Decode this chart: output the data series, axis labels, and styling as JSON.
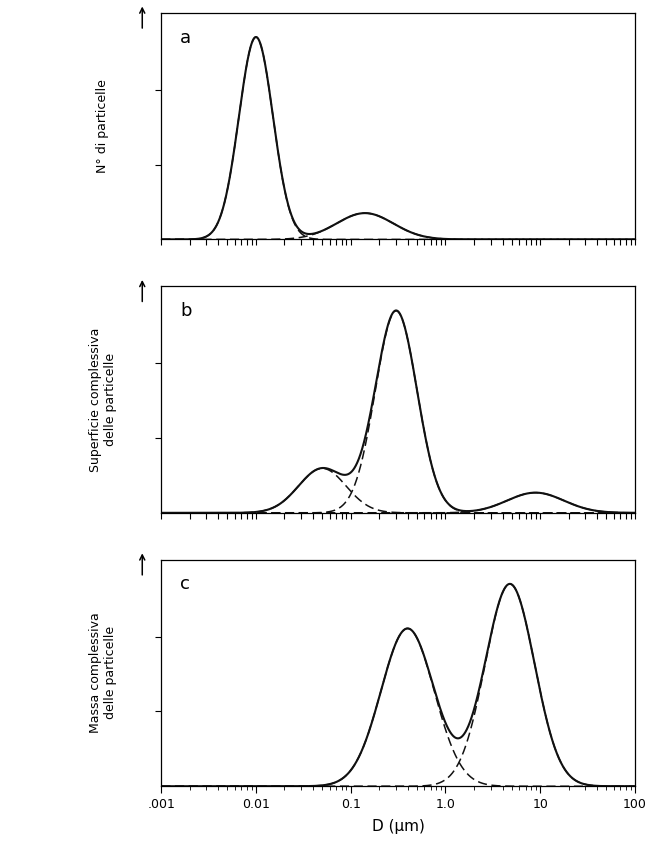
{
  "xlabel": "D (μm)",
  "xlim_log": [
    -3,
    2
  ],
  "panel_labels": [
    "a",
    "b",
    "c"
  ],
  "panel_ylabels": [
    "N° di particelle",
    "Superficie complessiva\ndelle particelle",
    "Massa complessiva\ndelle particelle"
  ],
  "xtick_vals": [
    0.001,
    0.01,
    0.1,
    1.0,
    10,
    100
  ],
  "xtick_labels": [
    ".001",
    "0.01",
    "0.1",
    "1.0",
    "10",
    "100"
  ],
  "line_color": "#111111",
  "panels": [
    {
      "label": "a",
      "components": [
        {
          "mu_log10": -2.0,
          "sigma_log10": 0.18,
          "amplitude": 1.0
        },
        {
          "mu_log10": -0.85,
          "sigma_log10": 0.3,
          "amplitude": 0.13
        }
      ]
    },
    {
      "label": "b",
      "components": [
        {
          "mu_log10": -0.52,
          "sigma_log10": 0.22,
          "amplitude": 1.0
        },
        {
          "mu_log10": -1.3,
          "sigma_log10": 0.25,
          "amplitude": 0.22
        },
        {
          "mu_log10": 0.95,
          "sigma_log10": 0.3,
          "amplitude": 0.1
        }
      ]
    },
    {
      "label": "c",
      "components": [
        {
          "mu_log10": -0.4,
          "sigma_log10": 0.28,
          "amplitude": 0.78
        },
        {
          "mu_log10": 0.68,
          "sigma_log10": 0.26,
          "amplitude": 1.0
        }
      ]
    }
  ]
}
